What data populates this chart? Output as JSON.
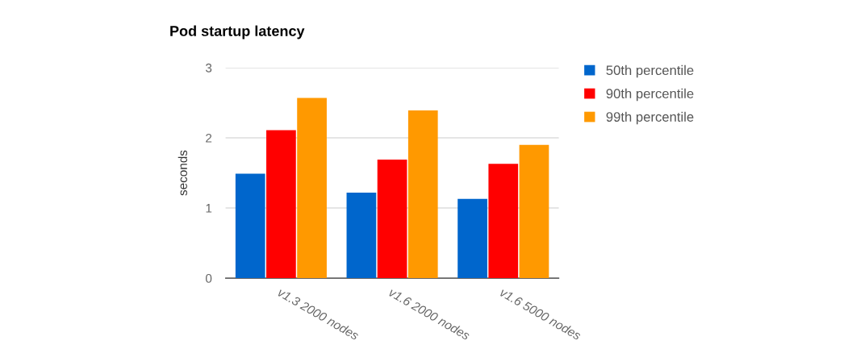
{
  "chart_data": {
    "type": "bar",
    "title": "Pod startup latency",
    "ylabel": "seconds",
    "categories": [
      "v1.3 2000 nodes",
      "v1.6 2000 nodes",
      "v1.6 5000 nodes"
    ],
    "series": [
      {
        "name": "50th percentile",
        "color": "#0066cc",
        "values": [
          1.49,
          1.22,
          1.13
        ]
      },
      {
        "name": "90th percentile",
        "color": "#ff0000",
        "values": [
          2.11,
          1.69,
          1.63
        ]
      },
      {
        "name": "99th percentile",
        "color": "#ff9900",
        "values": [
          2.57,
          2.39,
          1.9
        ]
      }
    ],
    "ylim": [
      0,
      3
    ],
    "yticks": [
      0,
      1,
      2,
      3
    ],
    "grid": "y",
    "legend": "top right"
  }
}
